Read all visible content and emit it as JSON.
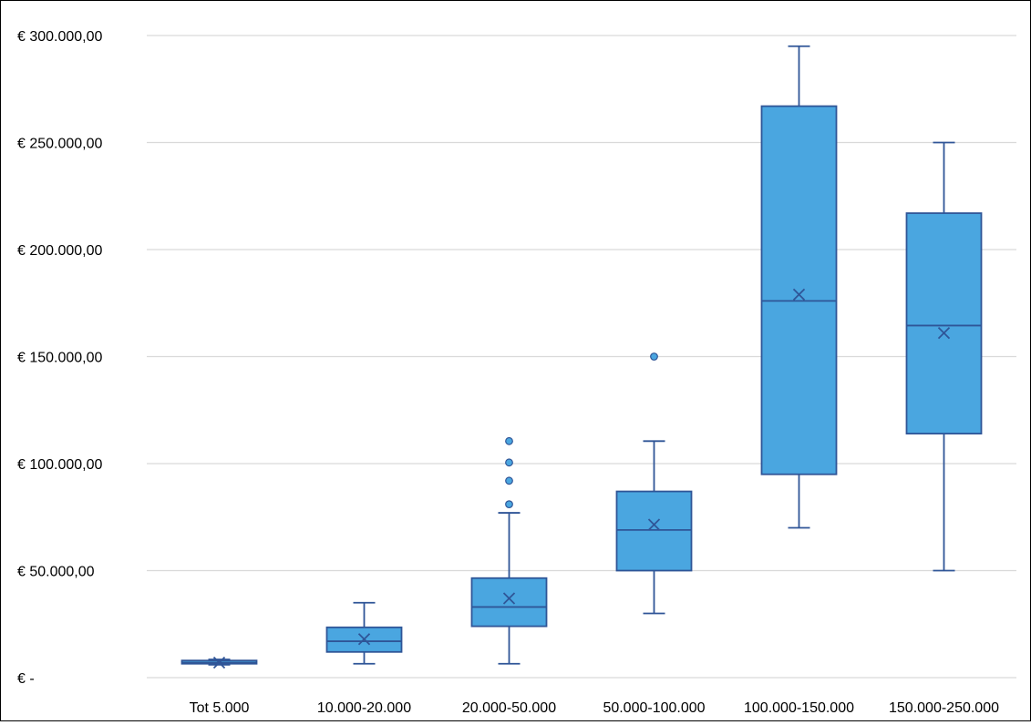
{
  "chart_data": {
    "type": "boxplot",
    "title": "",
    "xlabel": "",
    "ylabel": "",
    "ylim": [
      0,
      300000
    ],
    "y_ticks": [
      0,
      50000,
      100000,
      150000,
      200000,
      250000,
      300000
    ],
    "y_tick_labels": [
      "€ -",
      "€ 50.000,00",
      "€ 100.000,00",
      "€ 150.000,00",
      "€ 200.000,00",
      "€ 250.000,00",
      "€ 300.000,00"
    ],
    "grid": true,
    "legend": "none",
    "categories": [
      "Tot 5.000",
      "10.000-20.000",
      "20.000-50.000",
      "50.000-100.000",
      "100.000-150.000",
      "150.000-250.000"
    ],
    "boxes": [
      {
        "category": "Tot 5.000",
        "min": 6000,
        "q1": 6500,
        "median": 7000,
        "q3": 8000,
        "max": 8500,
        "mean": 7000,
        "outliers": []
      },
      {
        "category": "10.000-20.000",
        "min": 6500,
        "q1": 12000,
        "median": 17000,
        "q3": 23500,
        "max": 35000,
        "mean": 18000,
        "outliers": []
      },
      {
        "category": "20.000-50.000",
        "min": 6500,
        "q1": 24000,
        "median": 33000,
        "q3": 46500,
        "max": 77000,
        "mean": 37000,
        "outliers": [
          81000,
          92000,
          100500,
          110500
        ]
      },
      {
        "category": "50.000-100.000",
        "min": 30000,
        "q1": 50000,
        "median": 69000,
        "q3": 87000,
        "max": 110500,
        "mean": 71500,
        "outliers": [
          150000
        ]
      },
      {
        "category": "100.000-150.000",
        "min": 70000,
        "q1": 95000,
        "median": 176000,
        "q3": 267000,
        "max": 295000,
        "mean": 179000,
        "outliers": []
      },
      {
        "category": "150.000-250.000",
        "min": 50000,
        "q1": 114000,
        "median": 164500,
        "q3": 217000,
        "max": 250000,
        "mean": 161000,
        "outliers": []
      }
    ],
    "colors": {
      "box_fill": "#4aa6e0",
      "box_stroke": "#2f5597",
      "grid": "#d9d9d9",
      "text": "#000000"
    }
  }
}
